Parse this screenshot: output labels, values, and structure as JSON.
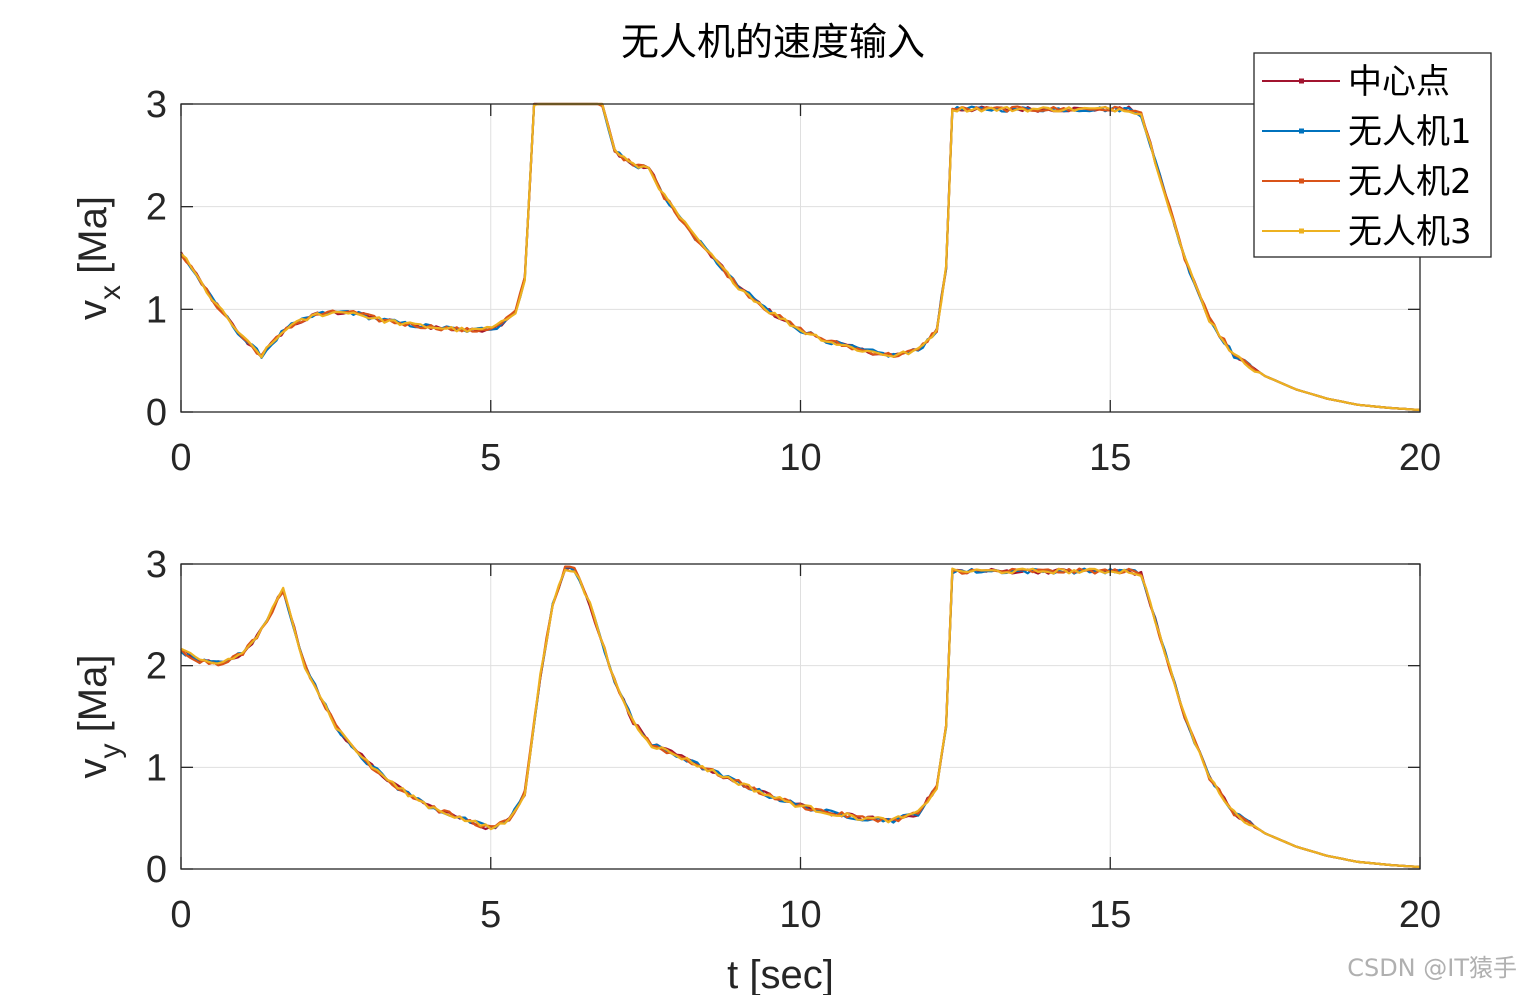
{
  "figure": {
    "title": "无人机的速度输入",
    "watermark": "CSDN @IT猿手"
  },
  "chart_data": [
    {
      "type": "line",
      "title": "无人机的速度输入",
      "xlabel": "",
      "ylabel_main": "v",
      "ylabel_sub": "x",
      "ylabel_unit": " [Ma]",
      "xlim": [
        0,
        20
      ],
      "ylim": [
        0,
        3
      ],
      "xticks": [
        "0",
        "5",
        "10",
        "15",
        "20"
      ],
      "yticks": [
        "0",
        "1",
        "2",
        "3"
      ],
      "grid": true,
      "legend_position": "top-right",
      "x": [
        0,
        0.5,
        1.0,
        1.3,
        1.7,
        2.2,
        2.7,
        3.2,
        3.7,
        4.2,
        4.7,
        5.1,
        5.4,
        5.55,
        5.7,
        6.0,
        6.5,
        6.8,
        7.0,
        7.3,
        7.55,
        7.8,
        8.3,
        9.0,
        9.5,
        10.0,
        10.5,
        11.0,
        11.5,
        11.9,
        12.2,
        12.35,
        12.45,
        13.0,
        14.0,
        15.0,
        15.3,
        15.5,
        15.8,
        16.2,
        16.6,
        17.0,
        17.5,
        18.0,
        18.5,
        19.0,
        19.5,
        20.0
      ],
      "series": [
        {
          "name": "中心点",
          "color": "#a2142f",
          "values": [
            1.55,
            1.1,
            0.72,
            0.55,
            0.82,
            0.95,
            0.98,
            0.9,
            0.85,
            0.82,
            0.79,
            0.83,
            0.98,
            1.3,
            3.0,
            3.0,
            3.0,
            3.0,
            2.55,
            2.4,
            2.38,
            2.1,
            1.7,
            1.22,
            0.98,
            0.8,
            0.68,
            0.6,
            0.55,
            0.6,
            0.8,
            1.4,
            2.95,
            2.95,
            2.95,
            2.95,
            2.95,
            2.9,
            2.3,
            1.5,
            0.9,
            0.55,
            0.35,
            0.22,
            0.13,
            0.07,
            0.04,
            0.02
          ]
        },
        {
          "name": "无人机1",
          "color": "#0072bd",
          "values": [
            1.55,
            1.1,
            0.72,
            0.55,
            0.82,
            0.95,
            0.98,
            0.9,
            0.85,
            0.82,
            0.79,
            0.83,
            0.98,
            1.3,
            3.0,
            3.0,
            3.0,
            3.0,
            2.55,
            2.4,
            2.38,
            2.1,
            1.7,
            1.22,
            0.98,
            0.8,
            0.68,
            0.6,
            0.55,
            0.6,
            0.8,
            1.4,
            2.95,
            2.95,
            2.95,
            2.95,
            2.95,
            2.9,
            2.3,
            1.5,
            0.9,
            0.55,
            0.35,
            0.22,
            0.13,
            0.07,
            0.04,
            0.02
          ]
        },
        {
          "name": "无人机2",
          "color": "#d95319",
          "values": [
            1.55,
            1.1,
            0.72,
            0.55,
            0.82,
            0.95,
            0.98,
            0.9,
            0.85,
            0.82,
            0.79,
            0.83,
            0.98,
            1.3,
            3.0,
            3.0,
            3.0,
            3.0,
            2.55,
            2.4,
            2.38,
            2.1,
            1.7,
            1.22,
            0.98,
            0.8,
            0.68,
            0.6,
            0.55,
            0.6,
            0.8,
            1.4,
            2.95,
            2.95,
            2.95,
            2.95,
            2.95,
            2.9,
            2.3,
            1.5,
            0.9,
            0.55,
            0.35,
            0.22,
            0.13,
            0.07,
            0.04,
            0.02
          ]
        },
        {
          "name": "无人机3",
          "color": "#edb120",
          "values": [
            1.55,
            1.1,
            0.72,
            0.55,
            0.82,
            0.95,
            0.98,
            0.9,
            0.85,
            0.82,
            0.79,
            0.83,
            0.98,
            1.3,
            3.0,
            3.0,
            3.0,
            3.0,
            2.55,
            2.4,
            2.38,
            2.1,
            1.7,
            1.22,
            0.98,
            0.8,
            0.68,
            0.6,
            0.55,
            0.6,
            0.8,
            1.4,
            2.95,
            2.95,
            2.95,
            2.95,
            2.95,
            2.9,
            2.3,
            1.5,
            0.9,
            0.55,
            0.35,
            0.22,
            0.13,
            0.07,
            0.04,
            0.02
          ]
        }
      ]
    },
    {
      "type": "line",
      "title": "",
      "xlabel": "t [sec]",
      "ylabel_main": "v",
      "ylabel_sub": "y",
      "ylabel_unit": " [Ma]",
      "xlim": [
        0,
        20
      ],
      "ylim": [
        0,
        3
      ],
      "xticks": [
        "0",
        "5",
        "10",
        "15",
        "20"
      ],
      "yticks": [
        "0",
        "1",
        "2",
        "3"
      ],
      "grid": true,
      "legend_position": "none",
      "x": [
        0,
        0.3,
        0.6,
        1.0,
        1.3,
        1.65,
        2.0,
        2.5,
        3.0,
        3.5,
        4.0,
        4.5,
        5.0,
        5.3,
        5.55,
        5.8,
        6.0,
        6.2,
        6.35,
        6.6,
        7.0,
        7.3,
        7.6,
        8.0,
        8.5,
        9.0,
        9.5,
        10.0,
        10.5,
        11.0,
        11.5,
        11.9,
        12.2,
        12.35,
        12.45,
        13.0,
        14.0,
        15.0,
        15.3,
        15.5,
        15.8,
        16.2,
        16.6,
        17.0,
        17.5,
        18.0,
        18.5,
        19.0,
        19.5,
        20.0
      ],
      "series": [
        {
          "name": "中心点",
          "color": "#a2142f",
          "values": [
            2.15,
            2.05,
            2.02,
            2.12,
            2.35,
            2.75,
            2.0,
            1.4,
            1.05,
            0.8,
            0.62,
            0.5,
            0.4,
            0.48,
            0.75,
            1.9,
            2.6,
            2.95,
            2.95,
            2.6,
            1.85,
            1.45,
            1.22,
            1.12,
            0.98,
            0.85,
            0.72,
            0.62,
            0.55,
            0.5,
            0.48,
            0.55,
            0.8,
            1.4,
            2.93,
            2.93,
            2.93,
            2.93,
            2.93,
            2.9,
            2.3,
            1.5,
            0.9,
            0.55,
            0.35,
            0.22,
            0.13,
            0.07,
            0.04,
            0.02
          ]
        },
        {
          "name": "无人机1",
          "color": "#0072bd",
          "values": [
            2.15,
            2.05,
            2.02,
            2.12,
            2.35,
            2.75,
            2.0,
            1.4,
            1.05,
            0.8,
            0.62,
            0.5,
            0.4,
            0.48,
            0.75,
            1.9,
            2.6,
            2.95,
            2.95,
            2.6,
            1.85,
            1.45,
            1.22,
            1.12,
            0.98,
            0.85,
            0.72,
            0.62,
            0.55,
            0.5,
            0.48,
            0.55,
            0.8,
            1.4,
            2.93,
            2.93,
            2.93,
            2.93,
            2.93,
            2.9,
            2.3,
            1.5,
            0.9,
            0.55,
            0.35,
            0.22,
            0.13,
            0.07,
            0.04,
            0.02
          ]
        },
        {
          "name": "无人机2",
          "color": "#d95319",
          "values": [
            2.15,
            2.05,
            2.02,
            2.12,
            2.35,
            2.75,
            2.0,
            1.4,
            1.05,
            0.8,
            0.62,
            0.5,
            0.4,
            0.48,
            0.75,
            1.9,
            2.6,
            2.95,
            2.95,
            2.6,
            1.85,
            1.45,
            1.22,
            1.12,
            0.98,
            0.85,
            0.72,
            0.62,
            0.55,
            0.5,
            0.48,
            0.55,
            0.8,
            1.4,
            2.93,
            2.93,
            2.93,
            2.93,
            2.93,
            2.9,
            2.3,
            1.5,
            0.9,
            0.55,
            0.35,
            0.22,
            0.13,
            0.07,
            0.04,
            0.02
          ]
        },
        {
          "name": "无人机3",
          "color": "#edb120",
          "values": [
            2.15,
            2.05,
            2.02,
            2.12,
            2.35,
            2.75,
            2.0,
            1.4,
            1.05,
            0.8,
            0.62,
            0.5,
            0.4,
            0.48,
            0.75,
            1.9,
            2.6,
            2.95,
            2.95,
            2.6,
            1.85,
            1.45,
            1.22,
            1.12,
            0.98,
            0.85,
            0.72,
            0.62,
            0.55,
            0.5,
            0.48,
            0.55,
            0.8,
            1.4,
            2.93,
            2.93,
            2.93,
            2.93,
            2.93,
            2.9,
            2.3,
            1.5,
            0.9,
            0.55,
            0.35,
            0.22,
            0.13,
            0.07,
            0.04,
            0.02
          ]
        }
      ]
    }
  ]
}
